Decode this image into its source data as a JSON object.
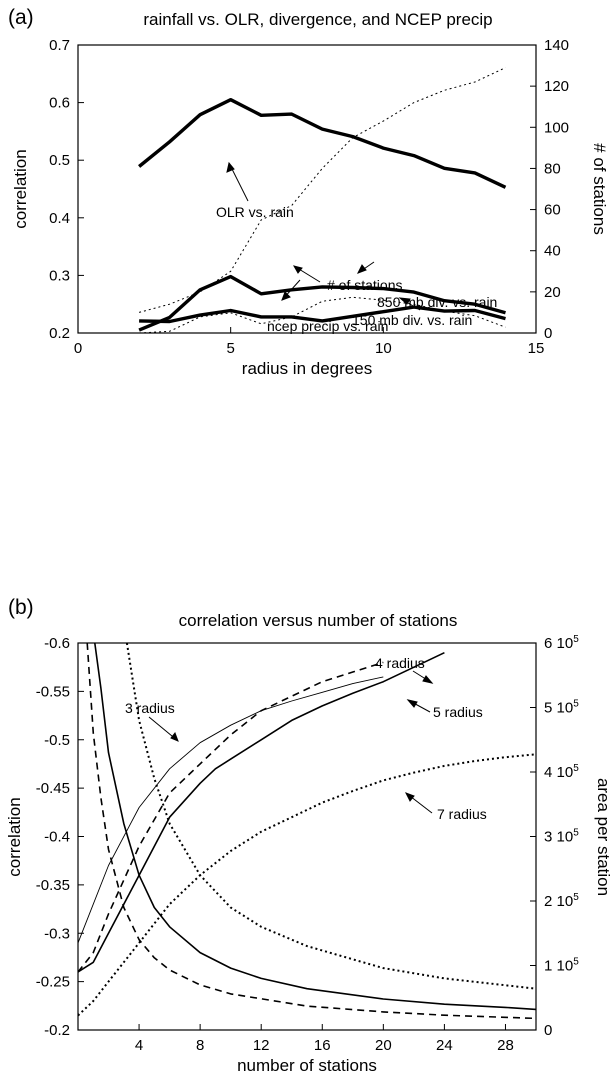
{
  "chart_data": [
    {
      "panel": "(a)",
      "type": "line",
      "title": "rainfall vs. OLR, divergence, and NCEP precip",
      "xlabel": "radius in degrees",
      "ylabel": "correlation",
      "y2label": "# of stations",
      "xlim": [
        0,
        15
      ],
      "ylim": [
        0.2,
        0.7
      ],
      "y2lim": [
        0,
        140
      ],
      "xticks": [
        "0",
        "5",
        "10",
        "15"
      ],
      "yticks": [
        "0.2",
        "0.3",
        "0.4",
        "0.5",
        "0.6",
        "0.7"
      ],
      "y2ticks": [
        "0",
        "20",
        "40",
        "60",
        "80",
        "100",
        "120",
        "140"
      ],
      "series": [
        {
          "key": "olr",
          "axis": "left",
          "style": "thick-solid",
          "x": [
            2,
            3,
            4,
            5,
            6,
            7,
            8,
            9,
            10,
            11,
            12,
            13,
            14
          ],
          "values": [
            0.489,
            0.532,
            0.579,
            0.605,
            0.578,
            0.58,
            0.554,
            0.541,
            0.521,
            0.508,
            0.486,
            0.478,
            0.453
          ]
        },
        {
          "key": "ncep",
          "axis": "left",
          "style": "thick-solid",
          "x": [
            2,
            3,
            4,
            5,
            6,
            7,
            8,
            9,
            10,
            11,
            12,
            13,
            14
          ],
          "values": [
            0.205,
            0.227,
            0.275,
            0.298,
            0.268,
            0.275,
            0.28,
            0.279,
            0.277,
            0.271,
            0.256,
            0.25,
            0.235
          ]
        },
        {
          "key": "div150",
          "axis": "left",
          "style": "thick-solid",
          "x": [
            2,
            3,
            4,
            5,
            6,
            7,
            8,
            9,
            10,
            11,
            12,
            13,
            14
          ],
          "values": [
            0.221,
            0.22,
            0.231,
            0.239,
            0.228,
            0.228,
            0.221,
            0.229,
            0.237,
            0.245,
            0.238,
            0.239,
            0.225
          ]
        },
        {
          "key": "div850",
          "axis": "left",
          "style": "thin-dotted",
          "x": [
            2,
            3,
            4,
            5,
            6,
            7,
            8,
            9,
            10,
            11,
            12,
            13,
            14
          ],
          "values": [
            0.2,
            0.203,
            0.228,
            0.235,
            0.216,
            0.228,
            0.255,
            0.262,
            0.257,
            0.25,
            0.238,
            0.23,
            0.21
          ]
        },
        {
          "key": "stations",
          "axis": "right",
          "style": "thin-dotted",
          "x": [
            2,
            3,
            4,
            5,
            6,
            7,
            8,
            9,
            10,
            11,
            12,
            13,
            14
          ],
          "values": [
            10,
            14,
            20,
            30,
            55,
            62,
            80,
            95,
            103,
            112,
            118,
            122,
            129
          ]
        }
      ],
      "annotations": [
        {
          "text": "OLR vs. rain",
          "target": "olr"
        },
        {
          "text": "# of stations",
          "target": "stations"
        },
        {
          "text": "ncep precip vs. rain",
          "target": "ncep"
        },
        {
          "text": "850 mb div. vs. rain",
          "target": "div850"
        },
        {
          "text": "150 mb div. vs. rain",
          "target": "div150"
        }
      ]
    },
    {
      "panel": "(b)",
      "type": "line",
      "title": "correlation versus number of stations",
      "xlabel": "number of stations",
      "ylabel": "correlation",
      "y2label": "area per station",
      "xlim": [
        0,
        30
      ],
      "ylim": [
        -0.2,
        -0.6
      ],
      "y2lim": [
        0,
        600000
      ],
      "xticks": [
        "4",
        "8",
        "12",
        "16",
        "20",
        "24",
        "28"
      ],
      "yticks": [
        "-0.2",
        "-0.25",
        "-0.3",
        "-0.35",
        "-0.4",
        "-0.45",
        "-0.5",
        "-0.55",
        "-0.6"
      ],
      "y2ticks": [
        "0",
        "1 10",
        "2 10",
        "3 10",
        "4 10",
        "5 10",
        "6 10"
      ],
      "y2tick_exponent": "5",
      "series": [
        {
          "key": "r3_corr",
          "axis": "left",
          "style": "thin-solid",
          "x": [
            0,
            2,
            4,
            6,
            8,
            10,
            12,
            14,
            16,
            18,
            20
          ],
          "values": [
            -0.29,
            -0.37,
            -0.43,
            -0.47,
            -0.497,
            -0.515,
            -0.53,
            -0.54,
            -0.549,
            -0.558,
            -0.565
          ]
        },
        {
          "key": "r4_corr",
          "axis": "left",
          "style": "dashed",
          "x": [
            0,
            1,
            2,
            4,
            6,
            8,
            9,
            10,
            12,
            14,
            16,
            18,
            20
          ],
          "values": [
            -0.26,
            -0.28,
            -0.32,
            -0.39,
            -0.445,
            -0.475,
            -0.49,
            -0.505,
            -0.53,
            -0.545,
            -0.56,
            -0.57,
            -0.58
          ]
        },
        {
          "key": "r5_corr",
          "axis": "left",
          "style": "solid",
          "x": [
            0,
            1,
            2,
            4,
            6,
            8,
            9,
            10,
            12,
            14,
            16,
            18,
            20,
            22,
            24
          ],
          "values": [
            -0.26,
            -0.27,
            -0.3,
            -0.36,
            -0.42,
            -0.455,
            -0.47,
            -0.48,
            -0.5,
            -0.52,
            -0.535,
            -0.548,
            -0.56,
            -0.575,
            -0.59
          ]
        },
        {
          "key": "r7_corr",
          "axis": "left",
          "style": "dotted",
          "x": [
            0,
            1,
            2,
            4,
            6,
            8,
            10,
            12,
            14,
            16,
            18,
            20,
            22,
            24,
            26,
            28,
            30
          ],
          "values": [
            -0.215,
            -0.23,
            -0.25,
            -0.29,
            -0.33,
            -0.36,
            -0.385,
            -0.405,
            -0.42,
            -0.435,
            -0.447,
            -0.458,
            -0.466,
            -0.473,
            -0.478,
            -0.482,
            -0.485
          ]
        },
        {
          "key": "r5_area",
          "axis": "right",
          "style": "solid",
          "x": [
            1.1,
            1.5,
            2,
            3,
            4,
            5,
            6,
            8,
            10,
            12,
            15,
            20,
            24,
            28,
            30
          ],
          "values": [
            600000,
            530000,
            430000,
            320000,
            240000,
            190000,
            160000,
            120000,
            96000,
            80000,
            64000,
            48000,
            40000,
            35000,
            32000
          ]
        },
        {
          "key": "r4_area",
          "axis": "right",
          "style": "dashed",
          "x": [
            0.6,
            1,
            1.5,
            2,
            3,
            4,
            5,
            6,
            8,
            10,
            15,
            20,
            24,
            30
          ],
          "values": [
            600000,
            460000,
            360000,
            280000,
            190000,
            140000,
            112000,
            93000,
            70000,
            56000,
            37000,
            28000,
            23000,
            18000
          ]
        },
        {
          "key": "r7_area",
          "axis": "right",
          "style": "dotted",
          "x": [
            3.2,
            4,
            5,
            6,
            8,
            10,
            12,
            15,
            20,
            24,
            30
          ],
          "values": [
            600000,
            480000,
            390000,
            320000,
            240000,
            190000,
            160000,
            130000,
            96000,
            80000,
            64000
          ]
        }
      ],
      "annotations": [
        {
          "text": "4 radius",
          "target": "r4_corr"
        },
        {
          "text": "3 radius",
          "target": "r3_corr"
        },
        {
          "text": "5 radius",
          "target": "r5_corr"
        },
        {
          "text": "7 radius",
          "target": "r7_corr"
        }
      ]
    }
  ]
}
